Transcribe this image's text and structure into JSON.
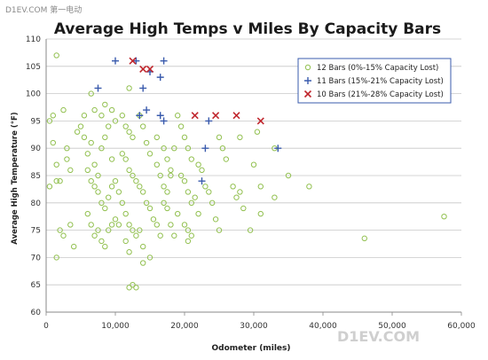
{
  "watermark": {
    "top": "D1EV.COM 第一电动",
    "bottom": "D1EV.COM"
  },
  "chart_data": {
    "type": "scatter",
    "title": "Average High Temps v Miles By Capacity Bars",
    "xlabel": "Odometer (miles)",
    "ylabel": "Average High Temperature (°F)",
    "xlim": [
      0,
      60000
    ],
    "ylim": [
      60,
      110
    ],
    "xticks": [
      "0",
      "10,000",
      "20,000",
      "30,000",
      "40,000",
      "50,000",
      "60,000"
    ],
    "yticks": [
      "60",
      "65",
      "70",
      "75",
      "80",
      "85",
      "90",
      "95",
      "100",
      "105",
      "110"
    ],
    "grid": true,
    "legend_position": "top-right",
    "colors": {
      "12": "#92c050",
      "11": "#3a5bad",
      "10": "#c0262d"
    },
    "series": [
      {
        "name": "12 Bars (0%-15% Capacity Lost)",
        "marker": "circle",
        "points": [
          [
            1500,
            107
          ],
          [
            500,
            95
          ],
          [
            1000,
            96
          ],
          [
            2500,
            97
          ],
          [
            1000,
            91
          ],
          [
            2000,
            84
          ],
          [
            1500,
            87
          ],
          [
            3000,
            88
          ],
          [
            3500,
            86
          ],
          [
            1500,
            84
          ],
          [
            500,
            83
          ],
          [
            2000,
            75
          ],
          [
            2500,
            74
          ],
          [
            1500,
            70
          ],
          [
            3500,
            76
          ],
          [
            4000,
            72
          ],
          [
            3000,
            90
          ],
          [
            4500,
            93
          ],
          [
            5000,
            94
          ],
          [
            5500,
            96
          ],
          [
            6000,
            89
          ],
          [
            5500,
            92
          ],
          [
            6500,
            91
          ],
          [
            7000,
            87
          ],
          [
            7500,
            85
          ],
          [
            8000,
            90
          ],
          [
            8500,
            92
          ],
          [
            9000,
            94
          ],
          [
            9500,
            88
          ],
          [
            10000,
            95
          ],
          [
            6000,
            86
          ],
          [
            6500,
            84
          ],
          [
            7000,
            83
          ],
          [
            7500,
            82
          ],
          [
            8000,
            80
          ],
          [
            8500,
            79
          ],
          [
            9000,
            81
          ],
          [
            9500,
            83
          ],
          [
            10000,
            84
          ],
          [
            10500,
            82
          ],
          [
            6000,
            78
          ],
          [
            6500,
            76
          ],
          [
            7000,
            74
          ],
          [
            7500,
            75
          ],
          [
            8000,
            73
          ],
          [
            8500,
            72
          ],
          [
            9000,
            75
          ],
          [
            9500,
            76
          ],
          [
            10000,
            77
          ],
          [
            10500,
            76
          ],
          [
            6500,
            100
          ],
          [
            7000,
            97
          ],
          [
            8000,
            96
          ],
          [
            8500,
            98
          ],
          [
            9500,
            97
          ],
          [
            11000,
            96
          ],
          [
            11500,
            94
          ],
          [
            12000,
            93
          ],
          [
            12500,
            92
          ],
          [
            11000,
            89
          ],
          [
            11500,
            88
          ],
          [
            12000,
            86
          ],
          [
            12500,
            85
          ],
          [
            13000,
            84
          ],
          [
            11000,
            80
          ],
          [
            11500,
            78
          ],
          [
            12000,
            76
          ],
          [
            12500,
            75
          ],
          [
            13000,
            74
          ],
          [
            11500,
            73
          ],
          [
            12000,
            71
          ],
          [
            12500,
            65
          ],
          [
            12000,
            64.5
          ],
          [
            13000,
            64.5
          ],
          [
            14000,
            69
          ],
          [
            12000,
            101
          ],
          [
            13500,
            96
          ],
          [
            14000,
            94
          ],
          [
            14500,
            91
          ],
          [
            15000,
            89
          ],
          [
            13500,
            83
          ],
          [
            14000,
            82
          ],
          [
            14500,
            80
          ],
          [
            15000,
            79
          ],
          [
            15500,
            77
          ],
          [
            13500,
            75
          ],
          [
            14000,
            72
          ],
          [
            15000,
            70
          ],
          [
            16000,
            76
          ],
          [
            16500,
            74
          ],
          [
            16000,
            87
          ],
          [
            16500,
            85
          ],
          [
            17000,
            83
          ],
          [
            17500,
            82
          ],
          [
            18000,
            85
          ],
          [
            16000,
            92
          ],
          [
            17000,
            90
          ],
          [
            17500,
            88
          ],
          [
            18000,
            86
          ],
          [
            18500,
            90
          ],
          [
            17000,
            80
          ],
          [
            17500,
            79
          ],
          [
            18000,
            76
          ],
          [
            18500,
            74
          ],
          [
            19000,
            78
          ],
          [
            19000,
            96
          ],
          [
            19500,
            94
          ],
          [
            20000,
            92
          ],
          [
            20500,
            90
          ],
          [
            21000,
            88
          ],
          [
            19500,
            85
          ],
          [
            20000,
            84
          ],
          [
            20500,
            82
          ],
          [
            21000,
            80
          ],
          [
            21500,
            81
          ],
          [
            20000,
            76
          ],
          [
            20500,
            75
          ],
          [
            21000,
            74
          ],
          [
            20500,
            73
          ],
          [
            22000,
            78
          ],
          [
            22000,
            87
          ],
          [
            22500,
            86
          ],
          [
            23000,
            83
          ],
          [
            23500,
            82
          ],
          [
            24000,
            80
          ],
          [
            24500,
            77
          ],
          [
            25000,
            75
          ],
          [
            25500,
            90
          ],
          [
            26000,
            88
          ],
          [
            25000,
            92
          ],
          [
            27000,
            83
          ],
          [
            27500,
            81
          ],
          [
            28000,
            82
          ],
          [
            28500,
            79
          ],
          [
            29500,
            75
          ],
          [
            30000,
            87
          ],
          [
            31000,
            83
          ],
          [
            33000,
            81
          ],
          [
            35000,
            85
          ],
          [
            38000,
            83
          ],
          [
            28000,
            92
          ],
          [
            30500,
            93
          ],
          [
            31000,
            78
          ],
          [
            33000,
            90
          ],
          [
            46000,
            73.5
          ],
          [
            57500,
            77.5
          ]
        ]
      },
      {
        "name": "11 Bars (15%-21% Capacity Lost)",
        "marker": "plus",
        "points": [
          [
            7500,
            101
          ],
          [
            10000,
            106
          ],
          [
            13000,
            106
          ],
          [
            13500,
            96
          ],
          [
            14000,
            101
          ],
          [
            14500,
            97
          ],
          [
            15000,
            104
          ],
          [
            16500,
            103
          ],
          [
            16500,
            96
          ],
          [
            17000,
            95
          ],
          [
            17000,
            106
          ],
          [
            22500,
            84
          ],
          [
            23000,
            90
          ],
          [
            23500,
            95
          ],
          [
            33500,
            90
          ]
        ]
      },
      {
        "name": "10 Bars (21%-28% Capacity Lost)",
        "marker": "x",
        "points": [
          [
            12500,
            106
          ],
          [
            14000,
            104.5
          ],
          [
            15000,
            104.5
          ],
          [
            21500,
            96
          ],
          [
            24500,
            96
          ],
          [
            27500,
            96
          ],
          [
            31000,
            95
          ]
        ]
      }
    ]
  }
}
